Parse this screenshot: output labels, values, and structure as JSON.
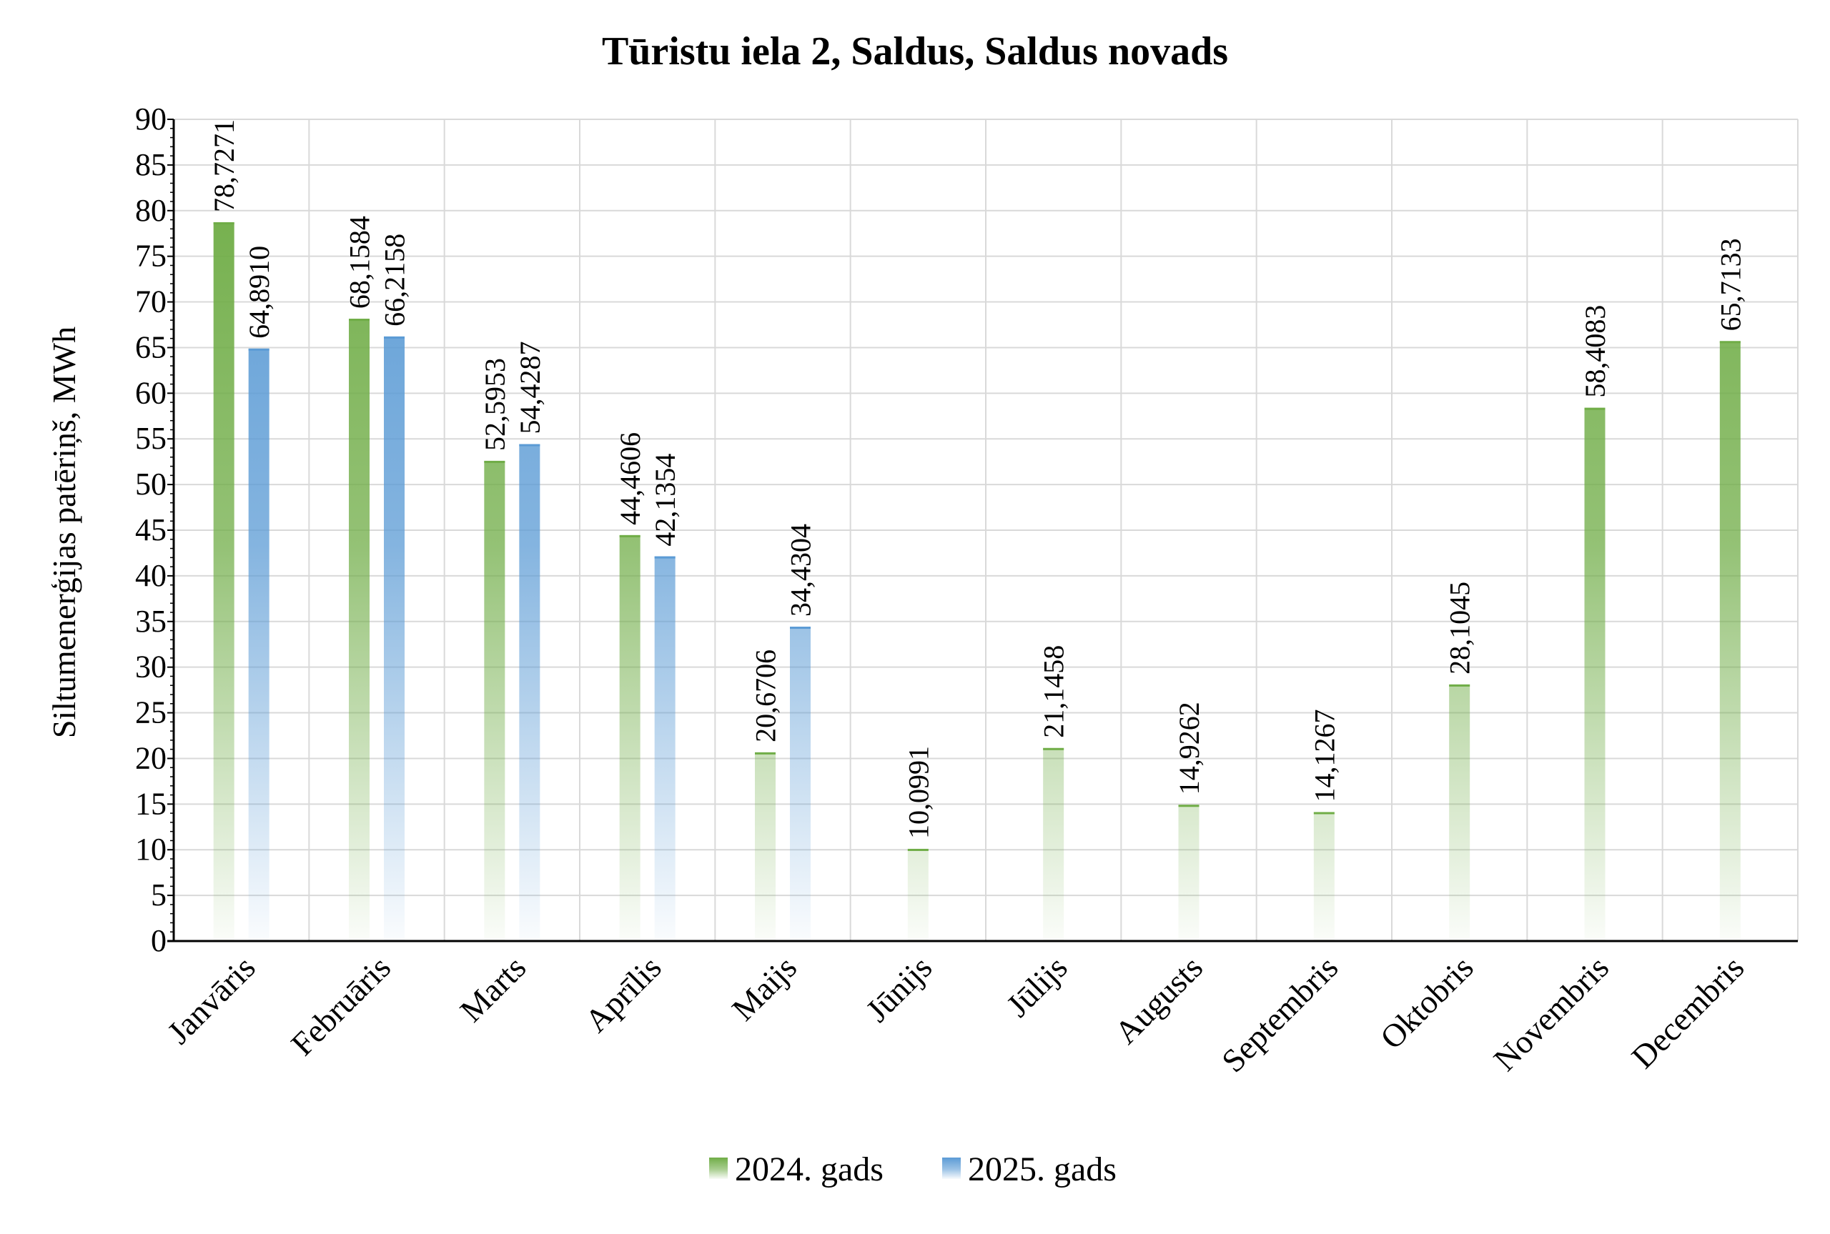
{
  "chart_data": {
    "type": "bar",
    "title": "Tūristu iela 2, Saldus, Saldus novads",
    "ylabel": "Siltumenerģijas patēriņš, MWh",
    "xlabel": "",
    "ylim": [
      0,
      90
    ],
    "y_major_step": 5,
    "y_ticks": [
      "0",
      "5",
      "10",
      "15",
      "20",
      "25",
      "30",
      "35",
      "40",
      "45",
      "50",
      "55",
      "60",
      "65",
      "70",
      "75",
      "80",
      "85",
      "90"
    ],
    "grid": true,
    "legend_position": "bottom",
    "categories": [
      "Janvāris",
      "Februāris",
      "Marts",
      "Aprīlis",
      "Maijs",
      "Jūnijs",
      "Jūlijs",
      "Augusts",
      "Septembris",
      "Oktobris",
      "Novembris",
      "Decembris"
    ],
    "series": [
      {
        "name": "2024. gads",
        "color": "#70AD47",
        "values": [
          78.7271,
          68.1584,
          52.5953,
          44.4606,
          20.6706,
          10.0991,
          21.1458,
          14.9262,
          14.1267,
          28.1045,
          58.4083,
          65.7133
        ],
        "labels": [
          "78,7271",
          "68,1584",
          "52,5953",
          "44,4606",
          "20,6706",
          "10,0991",
          "21,1458",
          "14,9262",
          "14,1267",
          "28,1045",
          "58,4083",
          "65,7133"
        ]
      },
      {
        "name": "2025. gads",
        "color": "#5B9BD5",
        "values": [
          64.891,
          66.2158,
          54.4287,
          42.1354,
          34.4304,
          null,
          null,
          null,
          null,
          null,
          null,
          null
        ],
        "labels": [
          "64,8910",
          "66,2158",
          "54,4287",
          "42,1354",
          "34,4304",
          "",
          "",
          "",
          "",
          "",
          "",
          ""
        ]
      }
    ]
  }
}
